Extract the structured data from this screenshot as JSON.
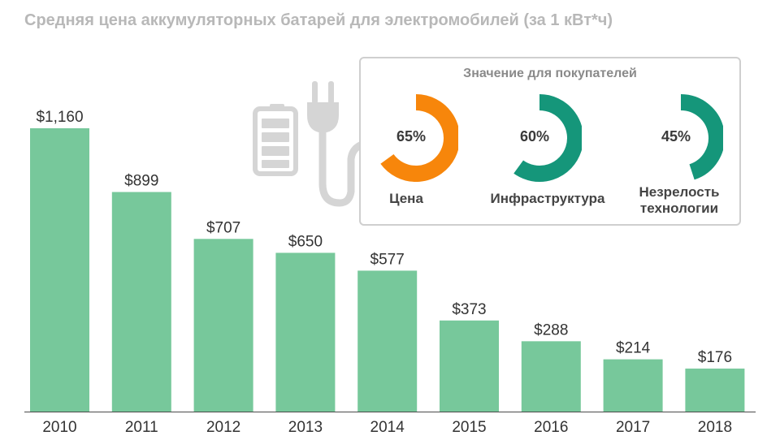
{
  "title": "Средняя цена аккумуляторных батарей для электромобилей (за 1 кВт*ч)",
  "colors": {
    "bar": "#77c89b",
    "accent_orange": "#f7860b",
    "accent_green": "#15967a",
    "icon_gray": "#d5d5d5",
    "axis": "#4a4a4a"
  },
  "chart_data": {
    "type": "bar",
    "categories": [
      "2010",
      "2011",
      "2012",
      "2013",
      "2014",
      "2015",
      "2016",
      "2017",
      "2018"
    ],
    "values": [
      1160,
      899,
      707,
      650,
      577,
      373,
      288,
      214,
      176
    ],
    "value_labels": [
      "$1,160",
      "$899",
      "$707",
      "$650",
      "$577",
      "$373",
      "$288",
      "$214",
      "$176"
    ],
    "title": "Средняя цена аккумуляторных батарей для электромобилей (за 1 кВт*ч)",
    "xlabel": "",
    "ylabel": "",
    "ylim": [
      0,
      1160
    ],
    "grid": false,
    "legend": "none"
  },
  "inset": {
    "title": "Значение для покупателей",
    "items": [
      {
        "label": "Цена",
        "value": 65,
        "pct_text": "65%",
        "color": "#f7860b"
      },
      {
        "label": "Инфраструктура",
        "value": 60,
        "pct_text": "60%",
        "color": "#15967a"
      },
      {
        "label": "Незрелость технологии",
        "value": 45,
        "pct_text": "45%",
        "color": "#15967a"
      }
    ]
  },
  "icons": [
    "battery-icon",
    "plug-icon"
  ]
}
